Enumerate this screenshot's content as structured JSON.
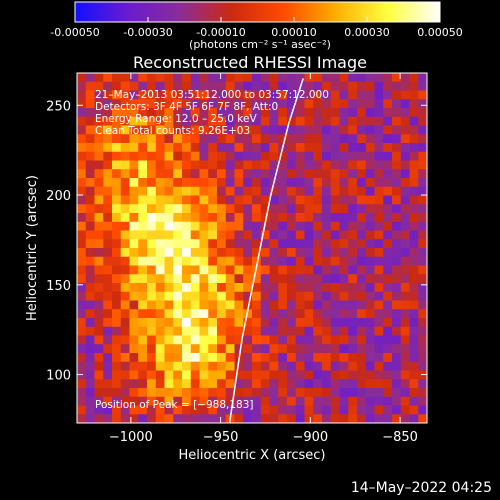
{
  "colorbar": {
    "tick_labels": [
      "-0.00050",
      "-0.00030",
      "-0.00010",
      "0.00010",
      "0.00030",
      "0.00050"
    ],
    "range": [
      -0.0005,
      0.0005
    ],
    "unit_label": "(photons cm⁻² s⁻¹ asec⁻²)",
    "colormap": [
      "#1010ff",
      "#6a1bd0",
      "#8a2c9a",
      "#cc2a10",
      "#ff4a00",
      "#ffae00",
      "#ffff40",
      "#ffffff"
    ]
  },
  "chart_data": {
    "type": "heatmap",
    "title": "Reconstructed RHESSI Image",
    "xlabel": "Heliocentric X (arcsec)",
    "ylabel": "Heliocentric Y (arcsec)",
    "xlim": [
      -1030,
      -835
    ],
    "ylim": [
      73,
      268
    ],
    "xticks": [
      -1000,
      -950,
      -900,
      -850
    ],
    "yticks": [
      100,
      150,
      200,
      250
    ],
    "xtick_labels": [
      "−1000",
      "−950",
      "−900",
      "−850"
    ],
    "ytick_labels": [
      "100",
      "150",
      "200",
      "250"
    ],
    "limb_curve": [
      [
        -945,
        73
      ],
      [
        -938,
        120
      ],
      [
        -930,
        160
      ],
      [
        -922,
        200
      ],
      [
        -912,
        240
      ],
      [
        -904,
        265
      ]
    ],
    "sources": [
      {
        "x": -985,
        "y": 183,
        "amp": 0.00045,
        "sigma": 25
      },
      {
        "x": -965,
        "y": 140,
        "amp": 0.0004,
        "sigma": 22
      },
      {
        "x": -970,
        "y": 105,
        "amp": 0.00035,
        "sigma": 18
      },
      {
        "x": -1000,
        "y": 230,
        "amp": 0.00025,
        "sigma": 20
      }
    ],
    "background": -0.00015,
    "annotations": {
      "line1": "21–May–2013 03:51:12.000 to 03:57:12.000",
      "line2": "Detectors: 3F 4F 5F 6F 7F 8F, Att:0",
      "line3": "Energy Range: 12.0 – 25.0 keV",
      "line4": "Clean    Total counts: 9.26E+03",
      "peak": "Position of Peak = [−988,183]"
    }
  },
  "footer": {
    "timestamp": "14–May–2022 04:25"
  }
}
